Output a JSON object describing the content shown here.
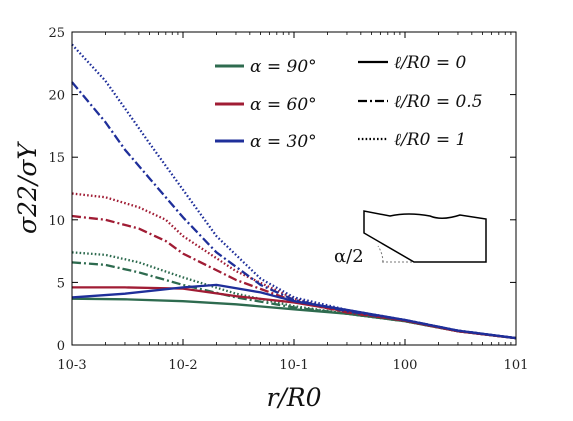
{
  "chart_data": {
    "type": "line",
    "x_scale": "log",
    "xlim": [
      0.001,
      10
    ],
    "ylim": [
      0,
      25
    ],
    "grid": false,
    "xlabel": "r/R0",
    "ylabel": "σ22/σY",
    "xtick_labels": [
      "10-3",
      "10-2",
      "10-1",
      "100",
      "101"
    ],
    "ytick_labels": [
      "0",
      "5",
      "10",
      "15",
      "20",
      "25"
    ],
    "legend": {
      "placement": "top-right",
      "colors": [
        {
          "label": "α = 90°",
          "color": "#2e6b4f"
        },
        {
          "label": "α = 60°",
          "color": "#a01c34"
        },
        {
          "label": "α = 30°",
          "color": "#1f2f9a"
        }
      ],
      "styles": [
        {
          "label": "ℓ/R0 = 0",
          "dash": "solid"
        },
        {
          "label": "ℓ/R0 = 0.5",
          "dash": "dashdot"
        },
        {
          "label": "ℓ/R0 = 1",
          "dash": "dotted"
        }
      ]
    },
    "inset_label": "α/2",
    "series": [
      {
        "color": "#2e6b4f",
        "dash": "solid",
        "x": [
          0.001,
          0.003,
          0.01,
          0.03,
          0.1,
          0.3,
          1,
          3,
          10
        ],
        "y": [
          3.7,
          3.65,
          3.5,
          3.25,
          2.85,
          2.5,
          1.9,
          1.1,
          0.55
        ]
      },
      {
        "color": "#2e6b4f",
        "dash": "dashdot",
        "x": [
          0.001,
          0.002,
          0.004,
          0.01,
          0.03,
          0.1,
          0.3,
          1,
          3,
          10
        ],
        "y": [
          6.6,
          6.4,
          5.8,
          4.8,
          3.8,
          3.0,
          2.5,
          1.9,
          1.1,
          0.55
        ]
      },
      {
        "color": "#2e6b4f",
        "dash": "dotted",
        "x": [
          0.001,
          0.002,
          0.004,
          0.01,
          0.03,
          0.1,
          0.3,
          1,
          3,
          10
        ],
        "y": [
          7.4,
          7.2,
          6.6,
          5.4,
          4.1,
          3.1,
          2.5,
          1.9,
          1.1,
          0.55
        ]
      },
      {
        "color": "#a01c34",
        "dash": "solid",
        "x": [
          0.001,
          0.003,
          0.01,
          0.03,
          0.1,
          0.3,
          1,
          3,
          10
        ],
        "y": [
          4.6,
          4.6,
          4.5,
          3.9,
          3.4,
          2.7,
          1.95,
          1.1,
          0.55
        ]
      },
      {
        "color": "#a01c34",
        "dash": "dashdot",
        "x": [
          0.001,
          0.002,
          0.004,
          0.007,
          0.01,
          0.03,
          0.1,
          0.3,
          1,
          3,
          10
        ],
        "y": [
          10.3,
          10.0,
          9.3,
          8.3,
          7.3,
          5.2,
          3.5,
          2.6,
          1.95,
          1.1,
          0.55
        ]
      },
      {
        "color": "#a01c34",
        "dash": "dotted",
        "x": [
          0.001,
          0.002,
          0.004,
          0.007,
          0.01,
          0.03,
          0.1,
          0.3,
          1,
          3,
          10
        ],
        "y": [
          12.1,
          11.8,
          11.0,
          10.0,
          8.7,
          5.9,
          3.7,
          2.6,
          1.95,
          1.1,
          0.55
        ]
      },
      {
        "color": "#1f2f9a",
        "dash": "solid",
        "x": [
          0.001,
          0.003,
          0.01,
          0.02,
          0.05,
          0.1,
          0.3,
          1,
          3,
          10
        ],
        "y": [
          3.8,
          4.1,
          4.6,
          4.8,
          4.2,
          3.5,
          2.8,
          2.0,
          1.15,
          0.55
        ]
      },
      {
        "color": "#1f2f9a",
        "dash": "dashdot",
        "x": [
          0.001,
          0.002,
          0.003,
          0.005,
          0.01,
          0.02,
          0.05,
          0.1,
          0.3,
          1,
          3,
          10
        ],
        "y": [
          21.0,
          17.8,
          15.6,
          13.3,
          10.2,
          7.4,
          4.8,
          3.6,
          2.7,
          2.0,
          1.15,
          0.55
        ]
      },
      {
        "color": "#1f2f9a",
        "dash": "dotted",
        "x": [
          0.001,
          0.002,
          0.003,
          0.005,
          0.01,
          0.02,
          0.05,
          0.1,
          0.3,
          1,
          3,
          10
        ],
        "y": [
          24.0,
          21.1,
          18.9,
          16.1,
          12.4,
          8.7,
          5.3,
          3.8,
          2.8,
          2.0,
          1.15,
          0.55
        ]
      }
    ]
  }
}
